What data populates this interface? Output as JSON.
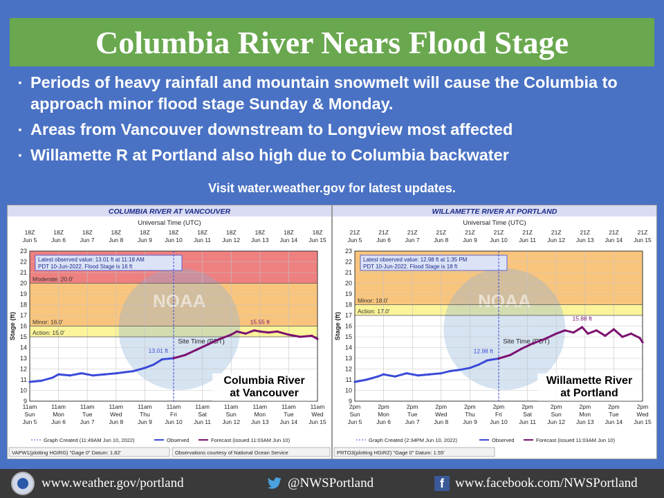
{
  "header": {
    "title": "Columbia River Nears Flood Stage"
  },
  "bullets": [
    "Periods of heavy rainfall and mountain snowmelt will cause the Columbia to approach minor flood stage Sunday & Monday.",
    "Areas from Vancouver downstream to Longview most affected",
    "Willamette R at Portland also high due to Columbia backwater"
  ],
  "bullet_mark": "▪",
  "visit_text": "Visit water.weather.gov for latest updates.",
  "colors": {
    "background": "#4a72c4",
    "title_bar": "#6aa84f",
    "major": "#ee8080",
    "moderate": "#f9c57d",
    "minor": "#fbf49a",
    "observed": "#3a4ad8",
    "forecast": "#7b1170"
  },
  "footer": {
    "website": "www.weather.gov/portland",
    "twitter": "@NWSPortland",
    "facebook": "www.facebook.com/NWSPortland",
    "icons": [
      "nws-logo-icon",
      "twitter-bird-icon",
      "facebook-icon"
    ]
  },
  "chart_data": [
    {
      "type": "line",
      "title": "COLUMBIA RIVER AT VANCOUVER",
      "top_axis_title": "Universal Time (UTC)",
      "top_ticks": [
        "18Z",
        "18Z",
        "18Z",
        "18Z",
        "18Z",
        "18Z",
        "18Z",
        "18Z",
        "18Z",
        "18Z",
        "18Z"
      ],
      "top_dates": [
        "Jun 5",
        "Jun 6",
        "Jun 7",
        "Jun 8",
        "Jun 9",
        "Jun 10",
        "Jun 11",
        "Jun 12",
        "Jun 13",
        "Jun 14",
        "Jun 15"
      ],
      "bottom_axis_title": "Site Time (PDT)",
      "bottom_times": [
        "11am",
        "11am",
        "11am",
        "11am",
        "11am",
        "11am",
        "11am",
        "11am",
        "11am",
        "11am",
        "11am"
      ],
      "bottom_days": [
        "Sun",
        "Mon",
        "Tue",
        "Wed",
        "Thu",
        "Fri",
        "Sat",
        "Sun",
        "Mon",
        "Tue",
        "Wed"
      ],
      "bottom_dates": [
        "Jun 5",
        "Jun 6",
        "Jun 7",
        "Jun 8",
        "Jun 9",
        "Jun 10",
        "Jun 11",
        "Jun 12",
        "Jun 13",
        "Jun 14",
        "Jun 15"
      ],
      "ylabel": "Stage (ft)",
      "ylim": [
        9,
        23
      ],
      "xlim": [
        0,
        10
      ],
      "yticks": [
        9,
        10,
        11,
        12,
        13,
        14,
        15,
        16,
        17,
        18,
        19,
        20,
        21,
        22,
        23
      ],
      "zones": [
        {
          "label": "",
          "from": 20,
          "to": 23,
          "color": "#ee8080"
        },
        {
          "label": "Moderate: 20.0'",
          "from": 16,
          "to": 20,
          "color": "#f9c57d"
        },
        {
          "label": "Minor: 16.0'",
          "from": 15,
          "to": 16,
          "color": "#fbf49a"
        },
        {
          "label": "Action: 15.0'",
          "from": 9,
          "to": 15,
          "color": "#ffffff"
        }
      ],
      "stage_labels": [
        {
          "text": "Moderate: 20.0'",
          "y": 20
        },
        {
          "text": "Minor: 16.0'",
          "y": 16
        },
        {
          "text": "Action: 15.0'",
          "y": 15
        }
      ],
      "info_box": [
        "Latest observed value: 13.01 ft at 11:18 AM",
        "PDT 10-Jun-2022.  Flood Stage is 16 ft"
      ],
      "now_x": 5.0,
      "observed": {
        "x": [
          0,
          0.4,
          0.8,
          1.0,
          1.4,
          1.8,
          2.2,
          2.6,
          3.0,
          3.3,
          3.6,
          4.0,
          4.3,
          4.6,
          5.0
        ],
        "y": [
          10.8,
          10.9,
          11.2,
          11.5,
          11.4,
          11.6,
          11.4,
          11.5,
          11.6,
          11.7,
          11.8,
          12.1,
          12.4,
          12.9,
          13.01
        ]
      },
      "forecast": {
        "x": [
          5.0,
          5.4,
          5.8,
          6.2,
          6.6,
          7.0,
          7.2,
          7.5,
          7.8,
          8.0,
          8.3,
          8.6,
          9.0,
          9.4,
          9.8,
          10.0
        ],
        "y": [
          13.01,
          13.3,
          13.8,
          14.3,
          14.8,
          15.2,
          15.5,
          15.3,
          15.6,
          15.5,
          15.4,
          15.5,
          15.2,
          15.0,
          15.1,
          14.8
        ]
      },
      "obs_label": {
        "text": "13.01 ft",
        "x": 5.0,
        "y": 13.01
      },
      "peak_label": {
        "text": "15.55 ft",
        "x": 8.0,
        "y": 15.55
      },
      "station_label": [
        "Columbia River",
        "at Vancouver"
      ],
      "legend": [
        "Graph Created (11:49AM Jun 10, 2022)",
        "Observed",
        "Forecast (issued 11:03AM Jun 10)"
      ],
      "footer_left": "VAPW1(plotting HGIRG) \"Gage 0\" Datum: 1.82'",
      "footer_right": "Observations courtesy of National Ocean Service"
    },
    {
      "type": "line",
      "title": "WILLAMETTE RIVER AT PORTLAND",
      "top_axis_title": "Universal Time (UTC)",
      "top_ticks": [
        "21Z",
        "21Z",
        "21Z",
        "21Z",
        "21Z",
        "21Z",
        "21Z",
        "21Z",
        "21Z",
        "21Z",
        "21Z"
      ],
      "top_dates": [
        "Jun 5",
        "Jun 6",
        "Jun 7",
        "Jun 8",
        "Jun 9",
        "Jun 10",
        "Jun 11",
        "Jun 12",
        "Jun 13",
        "Jun 14",
        "Jun 15"
      ],
      "bottom_axis_title": "Site Time (PDT)",
      "bottom_times": [
        "2pm",
        "2pm",
        "2pm",
        "2pm",
        "2pm",
        "2pm",
        "2pm",
        "2pm",
        "2pm",
        "2pm",
        "2pm"
      ],
      "bottom_days": [
        "Sun",
        "Mon",
        "Tue",
        "Wed",
        "Thu",
        "Fri",
        "Sat",
        "Sun",
        "Mon",
        "Tue",
        "Wed"
      ],
      "bottom_dates": [
        "Jun 5",
        "Jun 6",
        "Jun 7",
        "Jun 8",
        "Jun 9",
        "Jun 10",
        "Jun 11",
        "Jun 12",
        "Jun 13",
        "Jun 14",
        "Jun 15"
      ],
      "ylabel": "Stage (ft)",
      "ylim": [
        9,
        23
      ],
      "xlim": [
        0,
        10
      ],
      "yticks": [
        9,
        10,
        11,
        12,
        13,
        14,
        15,
        16,
        17,
        18,
        19,
        20,
        21,
        22,
        23
      ],
      "zones": [
        {
          "label": "",
          "from": 18,
          "to": 23,
          "color": "#f9c57d"
        },
        {
          "label": "Minor: 18.0'",
          "from": 17,
          "to": 18,
          "color": "#fbf49a"
        },
        {
          "label": "Action: 17.0'",
          "from": 9,
          "to": 17,
          "color": "#ffffff"
        }
      ],
      "stage_labels": [
        {
          "text": "Minor: 18.0'",
          "y": 18
        },
        {
          "text": "Action: 17.0'",
          "y": 17
        }
      ],
      "info_box": [
        "Latest observed value: 12.98 ft at 1:35 PM",
        "PDT 10-Jun-2022.  Flood Stage is 18 ft"
      ],
      "now_x": 5.0,
      "observed": {
        "x": [
          0,
          0.4,
          0.8,
          1.0,
          1.4,
          1.8,
          2.2,
          2.6,
          3.0,
          3.3,
          3.6,
          4.0,
          4.3,
          4.6,
          5.0
        ],
        "y": [
          10.8,
          11.0,
          11.3,
          11.5,
          11.3,
          11.6,
          11.4,
          11.5,
          11.6,
          11.8,
          11.9,
          12.1,
          12.4,
          12.8,
          12.98
        ]
      },
      "forecast": {
        "x": [
          5.0,
          5.4,
          5.8,
          6.2,
          6.6,
          7.0,
          7.3,
          7.6,
          7.9,
          8.1,
          8.4,
          8.7,
          9.0,
          9.3,
          9.6,
          9.9,
          10.0
        ],
        "y": [
          12.98,
          13.3,
          13.9,
          14.4,
          14.8,
          15.3,
          15.6,
          15.4,
          15.9,
          15.3,
          15.6,
          15.1,
          15.7,
          15.0,
          15.3,
          14.9,
          14.5
        ]
      },
      "obs_label": {
        "text": "12.98 ft",
        "x": 5.0,
        "y": 12.98
      },
      "peak_label": {
        "text": "15.88 ft",
        "x": 7.9,
        "y": 15.88
      },
      "station_label": [
        "Willamette River",
        "at Portland"
      ],
      "legend": [
        "Graph Created (2:34PM Jun 10, 2022)",
        "Observed",
        "Forecast (issued 11:03AM Jun 10)"
      ],
      "footer_left": "PRTO3(plotting HGIRZ) \"Gage 0\" Datum: 1.55'",
      "footer_right": ""
    }
  ]
}
